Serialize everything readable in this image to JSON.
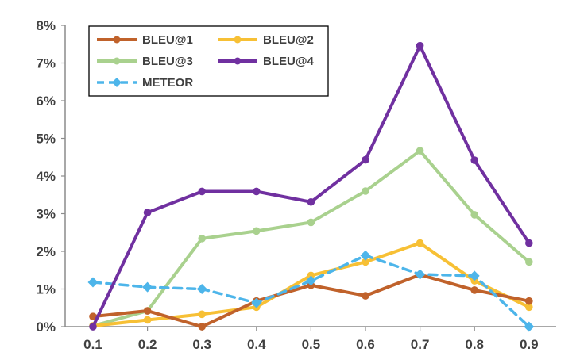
{
  "chart_data": {
    "type": "line",
    "title": "",
    "xlabel": "",
    "ylabel": "",
    "x": [
      "0.1",
      "0.2",
      "0.3",
      "0.4",
      "0.5",
      "0.6",
      "0.7",
      "0.8",
      "0.9"
    ],
    "yticks": [
      "0%",
      "1%",
      "2%",
      "3%",
      "4%",
      "5%",
      "6%",
      "7%",
      "8%"
    ],
    "ylim": [
      0,
      8
    ],
    "grid": false,
    "legend_position": "top-left",
    "legend_columns": 2,
    "series": [
      {
        "name": "BLEU@1",
        "color": "#c0622b",
        "dashed": false,
        "marker": "circle",
        "values": [
          0.27,
          0.42,
          0.0,
          0.68,
          1.1,
          0.82,
          1.38,
          0.97,
          0.68
        ]
      },
      {
        "name": "BLEU@2",
        "color": "#f7c035",
        "dashed": false,
        "marker": "circle",
        "values": [
          0.02,
          0.18,
          0.33,
          0.52,
          1.36,
          1.72,
          2.22,
          1.22,
          0.52
        ]
      },
      {
        "name": "BLEU@3",
        "color": "#a9d18e",
        "dashed": false,
        "marker": "circle",
        "values": [
          0.02,
          0.42,
          2.34,
          2.54,
          2.77,
          3.6,
          4.67,
          2.97,
          1.72
        ]
      },
      {
        "name": "BLEU@4",
        "color": "#7030a0",
        "dashed": false,
        "marker": "circle",
        "values": [
          0.0,
          3.03,
          3.59,
          3.59,
          3.31,
          4.43,
          7.46,
          4.42,
          2.22
        ]
      },
      {
        "name": "METEOR",
        "color": "#4db5ea",
        "dashed": true,
        "marker": "diamond",
        "values": [
          1.18,
          1.05,
          1.0,
          0.63,
          1.22,
          1.89,
          1.39,
          1.35,
          0.0
        ]
      }
    ]
  }
}
